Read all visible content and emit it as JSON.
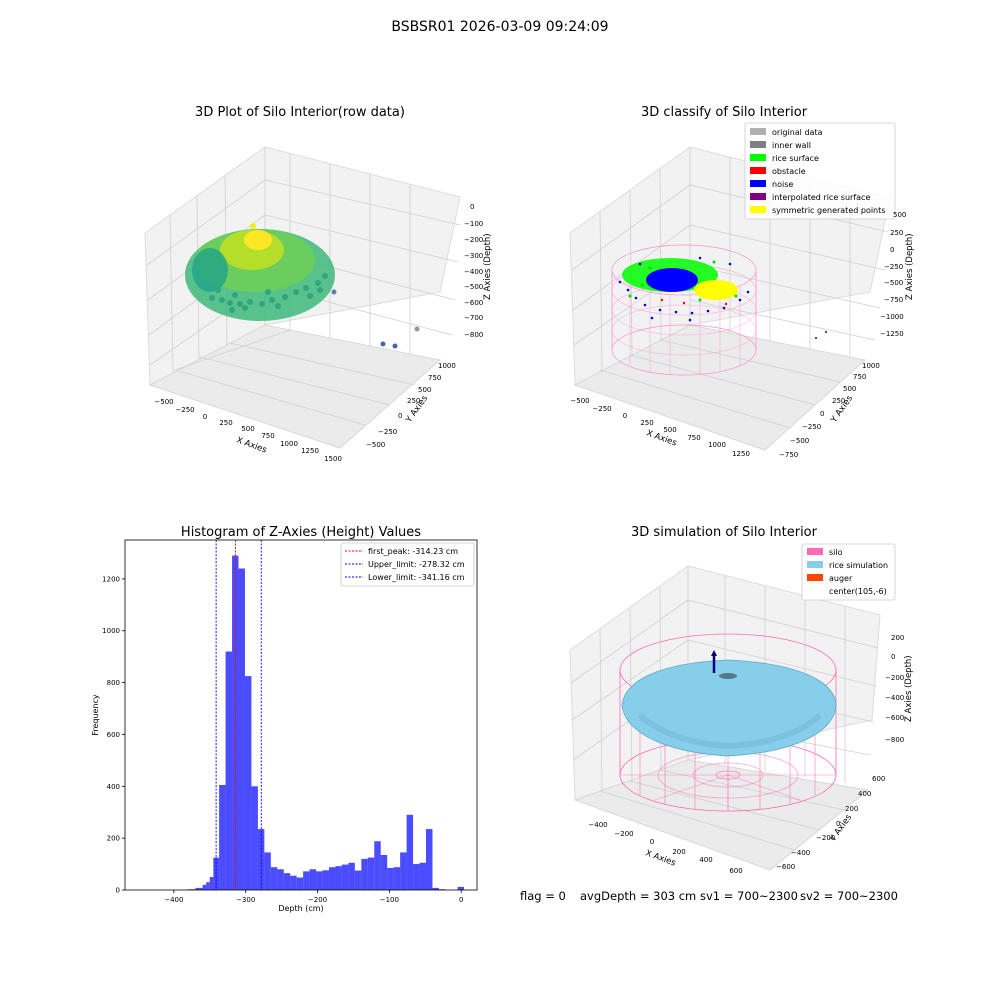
{
  "figure": {
    "suptitle": "BSBSR01 2026-03-09 09:24:09",
    "footer": {
      "flag": "flag = 0",
      "avg_depth": "avgDepth = 303 cm",
      "sv1": "sv1 = 700~2300",
      "sv2": "sv2 = 700~2300"
    }
  },
  "chart_data": [
    {
      "type": "scatter",
      "subtype": "3d",
      "title": "3D Plot of Silo Interior(row data)",
      "xlabel": "X Axies",
      "ylabel": "Y Axies",
      "zlabel": "Z Axies (Depth)",
      "x_ticks": [
        "−500",
        "−250",
        "0",
        "250",
        "500",
        "750",
        "1000",
        "1250",
        "1500"
      ],
      "y_ticks": [
        "−500",
        "−250",
        "0",
        "250",
        "500",
        "750",
        "1000"
      ],
      "z_ticks": [
        "0",
        "−100",
        "−200",
        "−300",
        "−400",
        "−500",
        "−600",
        "−700",
        "−800"
      ],
      "colormap": [
        "#30678d",
        "#21918c",
        "#35b779",
        "#6ece58",
        "#b5de2b",
        "#fde725"
      ],
      "outliers": [
        {
          "x": 1100,
          "y": 350,
          "z": -560
        },
        {
          "x": 1300,
          "y": 420,
          "z": -700
        },
        {
          "x": 1400,
          "y": 300,
          "z": -760
        },
        {
          "x": 1500,
          "y": 100,
          "z": -790
        }
      ]
    },
    {
      "type": "scatter",
      "subtype": "3d",
      "title": "3D classify of Silo Interior",
      "xlabel": "X Axies",
      "ylabel": "Y Axies",
      "zlabel": "Z Axies (Depth)",
      "x_ticks": [
        "−500",
        "−250",
        "0",
        "250",
        "500",
        "750",
        "1000",
        "1250"
      ],
      "y_ticks": [
        "−750",
        "−500",
        "−250",
        "0",
        "250",
        "500",
        "750",
        "1000"
      ],
      "z_ticks": [
        "500",
        "250",
        "0",
        "−250",
        "−500",
        "−750",
        "−1000",
        "−1250"
      ],
      "legend": [
        {
          "label": "original data",
          "color": "#b0b0b0"
        },
        {
          "label": "inner wall",
          "color": "#808080"
        },
        {
          "label": "rice surface",
          "color": "#00ff00"
        },
        {
          "label": "obstacle",
          "color": "#ff0000"
        },
        {
          "label": "noise",
          "color": "#0000ff"
        },
        {
          "label": "interpolated rice surface",
          "color": "#800080"
        },
        {
          "label": "symmetric generated points",
          "color": "#ffff00"
        }
      ],
      "legend_position": "top-right"
    },
    {
      "type": "bar",
      "subtype": "histogram",
      "title": "Histogram of Z-Axies (Height) Values",
      "xlabel": "Depth (cm)",
      "ylabel": "Frequency",
      "xlim": [
        -468,
        22
      ],
      "ylim": [
        0,
        1350
      ],
      "x_ticks": [
        -400,
        -300,
        -200,
        -100,
        0
      ],
      "x_tick_labels": [
        "−400",
        "−300",
        "−200",
        "−100",
        "0"
      ],
      "y_ticks": [
        0,
        200,
        400,
        600,
        800,
        1000,
        1200
      ],
      "bar_color": "#0000ff",
      "bins": [
        {
          "x0": -380,
          "x1": -370,
          "value": 3
        },
        {
          "x0": -370,
          "x1": -360,
          "value": 8
        },
        {
          "x0": -360,
          "x1": -355,
          "value": 20
        },
        {
          "x0": -355,
          "x1": -350,
          "value": 30
        },
        {
          "x0": -350,
          "x1": -345,
          "value": 50
        },
        {
          "x0": -345,
          "x1": -337,
          "value": 125
        },
        {
          "x0": -337,
          "x1": -328,
          "value": 405
        },
        {
          "x0": -328,
          "x1": -319,
          "value": 920
        },
        {
          "x0": -319,
          "x1": -310,
          "value": 1290
        },
        {
          "x0": -310,
          "x1": -301,
          "value": 1240
        },
        {
          "x0": -301,
          "x1": -292,
          "value": 825
        },
        {
          "x0": -292,
          "x1": -283,
          "value": 400
        },
        {
          "x0": -283,
          "x1": -274,
          "value": 235
        },
        {
          "x0": -274,
          "x1": -265,
          "value": 145
        },
        {
          "x0": -265,
          "x1": -256,
          "value": 88
        },
        {
          "x0": -256,
          "x1": -247,
          "value": 80
        },
        {
          "x0": -247,
          "x1": -238,
          "value": 65
        },
        {
          "x0": -238,
          "x1": -229,
          "value": 55
        },
        {
          "x0": -229,
          "x1": -220,
          "value": 48
        },
        {
          "x0": -220,
          "x1": -211,
          "value": 72
        },
        {
          "x0": -211,
          "x1": -202,
          "value": 80
        },
        {
          "x0": -202,
          "x1": -193,
          "value": 72
        },
        {
          "x0": -193,
          "x1": -184,
          "value": 76
        },
        {
          "x0": -184,
          "x1": -175,
          "value": 88
        },
        {
          "x0": -175,
          "x1": -166,
          "value": 92
        },
        {
          "x0": -166,
          "x1": -157,
          "value": 98
        },
        {
          "x0": -157,
          "x1": -148,
          "value": 105
        },
        {
          "x0": -148,
          "x1": -139,
          "value": 75
        },
        {
          "x0": -139,
          "x1": -130,
          "value": 120
        },
        {
          "x0": -130,
          "x1": -121,
          "value": 125
        },
        {
          "x0": -121,
          "x1": -112,
          "value": 188
        },
        {
          "x0": -112,
          "x1": -103,
          "value": 135
        },
        {
          "x0": -103,
          "x1": -94,
          "value": 85
        },
        {
          "x0": -94,
          "x1": -85,
          "value": 88
        },
        {
          "x0": -85,
          "x1": -76,
          "value": 145
        },
        {
          "x0": -76,
          "x1": -67,
          "value": 290
        },
        {
          "x0": -67,
          "x1": -58,
          "value": 100
        },
        {
          "x0": -58,
          "x1": -49,
          "value": 105
        },
        {
          "x0": -49,
          "x1": -40,
          "value": 235
        },
        {
          "x0": -40,
          "x1": -31,
          "value": 8
        },
        {
          "x0": -31,
          "x1": -22,
          "value": 3
        },
        {
          "x0": -5,
          "x1": 4,
          "value": 12
        }
      ],
      "vlines": [
        {
          "label": "first_peak: -314.23 cm",
          "x": -314.23,
          "color": "#ff0000"
        },
        {
          "label": "Upper_limit: -278.32 cm",
          "x": -278.32,
          "color": "#0000ff"
        },
        {
          "label": "Lower_limit: -341.16 cm",
          "x": -341.16,
          "color": "#0000ff"
        }
      ],
      "legend_position": "top-right"
    },
    {
      "type": "scatter",
      "subtype": "3d-surface",
      "title": "3D simulation of Silo Interior",
      "xlabel": "X Axies",
      "ylabel": "Y Axies",
      "zlabel": "Z Axies (Depth)",
      "x_ticks": [
        "−400",
        "−200",
        "0",
        "200",
        "400",
        "600"
      ],
      "y_ticks": [
        "−600",
        "−400",
        "−200",
        "0",
        "200",
        "400",
        "600"
      ],
      "z_ticks": [
        "200",
        "0",
        "−200",
        "−400",
        "−600",
        "−800"
      ],
      "legend": [
        {
          "label": "silo",
          "color": "#ff69b4"
        },
        {
          "label": "rice simulation",
          "color": "#87ceeb"
        },
        {
          "label": "auger",
          "color": "#ff4500"
        },
        {
          "label": "center(105,-6)",
          "color": "#ffffff"
        }
      ],
      "legend_position": "top-right"
    }
  ]
}
